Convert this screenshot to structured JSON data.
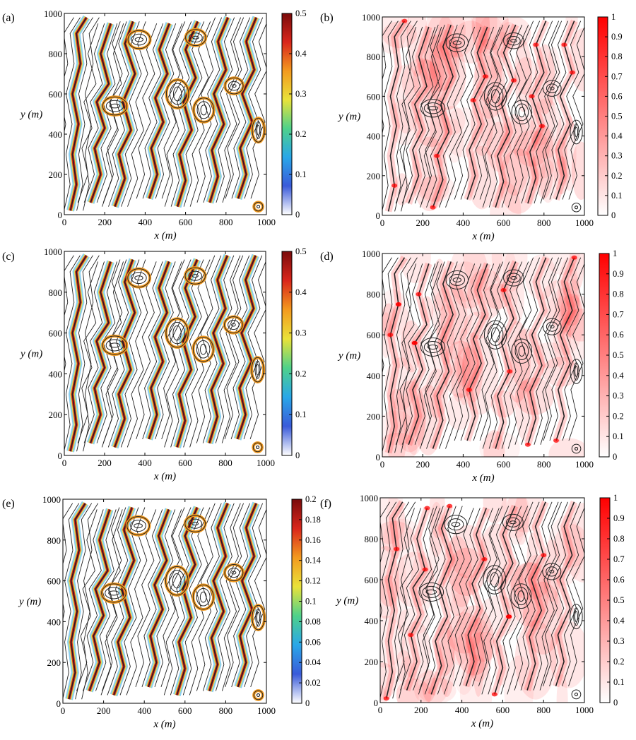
{
  "chart_data": [
    {
      "panel": "(a)",
      "type": "heatmap",
      "colormap": "jet",
      "xlabel": "x (m)",
      "ylabel": "y (m)",
      "xlim": [
        0,
        1000
      ],
      "ylim": [
        0,
        1000
      ],
      "xticks": [
        "0",
        "200",
        "400",
        "600",
        "800",
        "1000"
      ],
      "yticks": [
        "0",
        "200",
        "400",
        "600",
        "800",
        "1000"
      ],
      "colorbar_ticks": [
        "0",
        "0.1",
        "0.2",
        "0.3",
        "0.4",
        "0.5"
      ],
      "clim": [
        0,
        0.5
      ],
      "grid": false
    },
    {
      "panel": "(b)",
      "type": "heatmap",
      "colormap": "white-red",
      "xlabel": "x (m)",
      "ylabel": "y (m)",
      "xlim": [
        0,
        1000
      ],
      "ylim": [
        0,
        1000
      ],
      "xticks": [
        "0",
        "200",
        "400",
        "600",
        "800",
        "1000"
      ],
      "yticks": [
        "0",
        "200",
        "400",
        "600",
        "800",
        "1000"
      ],
      "colorbar_ticks": [
        "0",
        "0.1",
        "0.2",
        "0.3",
        "0.4",
        "0.5",
        "0.6",
        "0.7",
        "0.8",
        "0.9",
        "1"
      ],
      "clim": [
        0,
        1
      ],
      "grid": false
    },
    {
      "panel": "(c)",
      "type": "heatmap",
      "colormap": "jet",
      "xlabel": "x (m)",
      "ylabel": "y (m)",
      "xlim": [
        0,
        1000
      ],
      "ylim": [
        0,
        1000
      ],
      "xticks": [
        "0",
        "200",
        "400",
        "600",
        "800",
        "1000"
      ],
      "yticks": [
        "0",
        "200",
        "400",
        "600",
        "800",
        "1000"
      ],
      "colorbar_ticks": [
        "0",
        "0.1",
        "0.2",
        "0.3",
        "0.4",
        "0.5"
      ],
      "clim": [
        0,
        0.5
      ],
      "grid": false
    },
    {
      "panel": "(d)",
      "type": "heatmap",
      "colormap": "white-red",
      "xlabel": "x (m)",
      "ylabel": "y (m)",
      "xlim": [
        0,
        1000
      ],
      "ylim": [
        0,
        1000
      ],
      "xticks": [
        "0",
        "200",
        "400",
        "600",
        "800",
        "1000"
      ],
      "yticks": [
        "0",
        "200",
        "400",
        "600",
        "800",
        "1000"
      ],
      "colorbar_ticks": [
        "0",
        "0.1",
        "0.2",
        "0.3",
        "0.4",
        "0.5",
        "0.6",
        "0.7",
        "0.8",
        "0.9",
        "1"
      ],
      "clim": [
        0,
        1
      ],
      "grid": false
    },
    {
      "panel": "(e)",
      "type": "heatmap",
      "colormap": "jet",
      "xlabel": "x (m)",
      "ylabel": "y (m)",
      "xlim": [
        0,
        1000
      ],
      "ylim": [
        0,
        1000
      ],
      "xticks": [
        "0",
        "200",
        "400",
        "600",
        "800",
        "1000"
      ],
      "yticks": [
        "0",
        "200",
        "400",
        "600",
        "800",
        "1000"
      ],
      "colorbar_ticks": [
        "0",
        "0.02",
        "0.04",
        "0.06",
        "0.08",
        "0.1",
        "0.12",
        "0.14",
        "0.16",
        "0.18",
        "0.2"
      ],
      "clim": [
        0,
        0.2
      ],
      "grid": false
    },
    {
      "panel": "(f)",
      "type": "heatmap",
      "colormap": "white-red",
      "xlabel": "x (m)",
      "ylabel": "y (m)",
      "xlim": [
        0,
        1000
      ],
      "ylim": [
        0,
        1000
      ],
      "xticks": [
        "0",
        "200",
        "400",
        "600",
        "800",
        "1000"
      ],
      "yticks": [
        "0",
        "200",
        "400",
        "600",
        "800",
        "1000"
      ],
      "colorbar_ticks": [
        "0",
        "0.1",
        "0.2",
        "0.3",
        "0.4",
        "0.5",
        "0.6",
        "0.7",
        "0.8",
        "0.9",
        "1"
      ],
      "clim": [
        0,
        1
      ],
      "grid": false
    }
  ],
  "colors": {
    "jet": [
      "#ffffff",
      "#3a5bd9",
      "#2aa7e8",
      "#4fd18a",
      "#e9e23a",
      "#f39a1f",
      "#d9261c",
      "#7a0b0b"
    ],
    "white_red": [
      "#ffffff",
      "#ff0000"
    ],
    "contour": "#222222",
    "axis": "#000000"
  }
}
